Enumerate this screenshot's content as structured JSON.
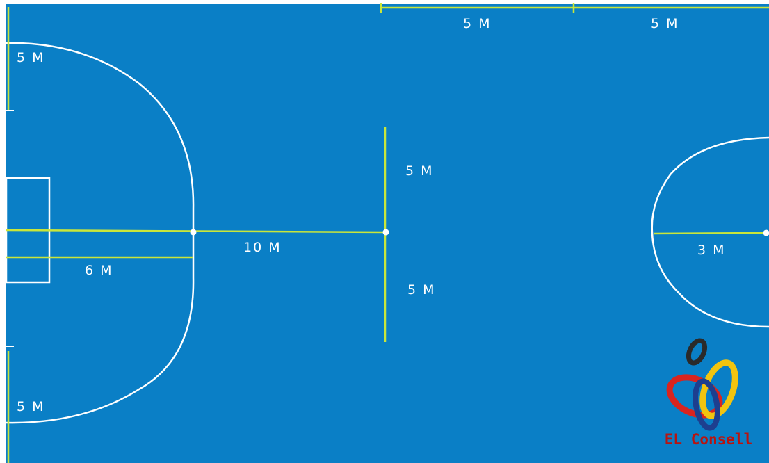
{
  "colors": {
    "court_blue": "#0a7fc6",
    "court_line": "#ffffff",
    "measure_line": "#c9e63a",
    "logo_red": "#d9241f",
    "logo_yellow": "#f2c40f",
    "logo_navy": "#1d3f8f",
    "logo_dark": "#2a2a2a",
    "logo_text": "#b81410"
  },
  "measurements": {
    "top_left_5m": "5 M",
    "top_right_5m": "5 M",
    "left_top_5m": "5 M",
    "left_bottom_5m": "5 M",
    "area_6m": "6 M",
    "center_10m": "10 M",
    "center_upper_5m": "5 M",
    "center_lower_5m": "5 M",
    "circle_3m": "3 M"
  },
  "logo": {
    "text": "EL Consell"
  }
}
